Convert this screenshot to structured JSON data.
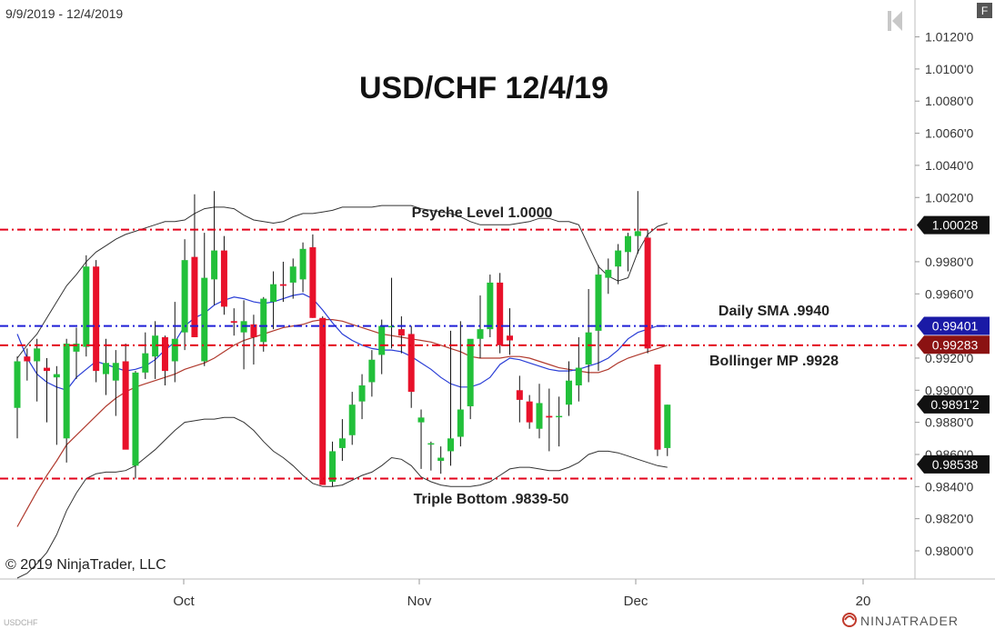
{
  "header": {
    "date_range": "9/9/2019 - 12/4/2019",
    "f_button": "F"
  },
  "footer": {
    "copyright": "© 2019 NinjaTrader, LLC",
    "symbol": "USDCHF",
    "brand": "NINJATRADER"
  },
  "icons": {
    "back": "skip-back-icon",
    "brand_logo": "ninjatrader-logo-icon"
  },
  "colors": {
    "up": "#22c03a",
    "down": "#e8112a",
    "line_red": "#e3001b",
    "line_blue": "#1f1fd6",
    "sma": "#2a3ed6",
    "midband": "#b03a2e",
    "bands": "#333333"
  },
  "chart_data": {
    "type": "candlestick",
    "title": "USD/CHF 12/4/19",
    "ylim": [
      0.9785,
      1.014
    ],
    "y_ticks": [
      "1.0120'0",
      "1.0100'0",
      "1.0080'0",
      "1.0060'0",
      "1.0040'0",
      "1.0020'0",
      "0.9980'0",
      "0.9960'0",
      "0.9920'0",
      "0.9900'0",
      "0.9880'0",
      "0.9860'0",
      "0.9840'0",
      "0.9820'0",
      "0.9800'0"
    ],
    "x_ticks": [
      "Oct",
      "Nov",
      "Dec",
      "20"
    ],
    "price_tags": [
      {
        "text": "1.00028",
        "value": 1.00028,
        "bg": "#111111"
      },
      {
        "text": "0.99401",
        "value": 0.99401,
        "bg": "#1a1aa6"
      },
      {
        "text": "0.99283",
        "value": 0.99283,
        "bg": "#8b1212"
      },
      {
        "text": "0.9891'2",
        "value": 0.98912,
        "bg": "#111111"
      },
      {
        "text": "0.98538",
        "value": 0.98538,
        "bg": "#111111"
      }
    ],
    "levels": [
      {
        "name": "Psyche Level 1.0000",
        "value": 1.0,
        "color": "red"
      },
      {
        "name": "Daily SMA .9940",
        "value": 0.994,
        "color": "blue"
      },
      {
        "name": "Bollinger MP .9928",
        "value": 0.9928,
        "color": "red"
      },
      {
        "name": "Triple Bottom .9839-50",
        "value": 0.9845,
        "color": "red"
      }
    ],
    "candles": [
      [
        0.9889,
        0.9921,
        0.987,
        0.9918
      ],
      [
        0.9921,
        0.9926,
        0.9906,
        0.9918
      ],
      [
        0.9918,
        0.9932,
        0.9893,
        0.9926
      ],
      [
        0.9914,
        0.992,
        0.988,
        0.9912
      ],
      [
        0.9908,
        0.9915,
        0.9866,
        0.991
      ],
      [
        0.987,
        0.9932,
        0.9855,
        0.9929
      ],
      [
        0.9924,
        0.9939,
        0.9907,
        0.9929
      ],
      [
        0.9927,
        0.9984,
        0.9921,
        0.9977
      ],
      [
        0.9977,
        0.9981,
        0.9905,
        0.9912
      ],
      [
        0.991,
        0.9932,
        0.9897,
        0.9917
      ],
      [
        0.9906,
        0.9925,
        0.9884,
        0.9917
      ],
      [
        0.9918,
        0.9929,
        0.9865,
        0.9863
      ],
      [
        0.9853,
        0.9912,
        0.9845,
        0.9911
      ],
      [
        0.9911,
        0.9936,
        0.9907,
        0.9923
      ],
      [
        0.9921,
        0.9943,
        0.9907,
        0.9934
      ],
      [
        0.9933,
        0.9934,
        0.9903,
        0.9912
      ],
      [
        0.9918,
        0.9955,
        0.9905,
        0.9932
      ],
      [
        0.9936,
        0.9994,
        0.9925,
        0.9981
      ],
      [
        0.9983,
        1.0022,
        0.9935,
        0.9933
      ],
      [
        0.9918,
        0.9998,
        0.9915,
        0.997
      ],
      [
        0.9969,
        1.0024,
        0.9953,
        0.9987
      ],
      [
        0.9987,
        0.9996,
        0.9947,
        0.9952
      ],
      [
        0.9943,
        0.9951,
        0.9934,
        0.9942
      ],
      [
        0.9936,
        0.9956,
        0.9913,
        0.9943
      ],
      [
        0.9941,
        0.9947,
        0.9916,
        0.9933
      ],
      [
        0.993,
        0.9958,
        0.9924,
        0.9957
      ],
      [
        0.9955,
        0.9974,
        0.9938,
        0.9966
      ],
      [
        0.9966,
        0.998,
        0.9955,
        0.9965
      ],
      [
        0.9967,
        0.9982,
        0.9957,
        0.9977
      ],
      [
        0.9969,
        0.9992,
        0.9961,
        0.9988
      ],
      [
        0.9989,
        0.9997,
        0.9945,
        0.9945
      ],
      [
        0.9945,
        0.9946,
        0.9841,
        0.9841
      ],
      [
        0.9843,
        0.9868,
        0.984,
        0.9862
      ],
      [
        0.9864,
        0.9882,
        0.9856,
        0.987
      ],
      [
        0.9872,
        0.9899,
        0.9866,
        0.9891
      ],
      [
        0.9893,
        0.991,
        0.9882,
        0.9903
      ],
      [
        0.9905,
        0.9925,
        0.9896,
        0.9919
      ],
      [
        0.9922,
        0.9944,
        0.991,
        0.994
      ],
      [
        0.994,
        0.997,
        0.9926,
        0.994
      ],
      [
        0.9938,
        0.9946,
        0.9923,
        0.9934
      ],
      [
        0.9935,
        0.994,
        0.9889,
        0.9899
      ],
      [
        0.988,
        0.9888,
        0.9851,
        0.9883
      ],
      [
        0.9867,
        0.9868,
        0.985,
        0.9867
      ],
      [
        0.9856,
        0.9865,
        0.9848,
        0.9858
      ],
      [
        0.9862,
        0.9937,
        0.9853,
        0.987
      ],
      [
        0.9871,
        0.9943,
        0.9865,
        0.9888
      ],
      [
        0.989,
        0.993,
        0.9882,
        0.9932
      ],
      [
        0.9932,
        0.9959,
        0.992,
        0.9938
      ],
      [
        0.9938,
        0.9972,
        0.9933,
        0.9967
      ],
      [
        0.9967,
        0.9973,
        0.9923,
        0.9928
      ],
      [
        0.9934,
        0.9951,
        0.9922,
        0.9931
      ],
      [
        0.99,
        0.9909,
        0.988,
        0.9894
      ],
      [
        0.9893,
        0.9897,
        0.9876,
        0.988
      ],
      [
        0.9876,
        0.9904,
        0.987,
        0.9892
      ],
      [
        0.9884,
        0.9901,
        0.9862,
        0.9883
      ],
      [
        0.9884,
        0.9896,
        0.9865,
        0.9884
      ],
      [
        0.9891,
        0.9918,
        0.9884,
        0.9906
      ],
      [
        0.9903,
        0.9933,
        0.9893,
        0.9914
      ],
      [
        0.9916,
        0.9963,
        0.9905,
        0.9936
      ],
      [
        0.9937,
        0.9978,
        0.9912,
        0.9972
      ],
      [
        0.997,
        0.9982,
        0.996,
        0.9975
      ],
      [
        0.9977,
        0.9991,
        0.9966,
        0.9987
      ],
      [
        0.9986,
        0.9998,
        0.9974,
        0.9996
      ],
      [
        0.9996,
        1.0024,
        0.9985,
        0.9999
      ],
      [
        0.9995,
        1.0,
        0.9923,
        0.9926
      ],
      [
        0.9916,
        0.9916,
        0.9859,
        0.9863
      ],
      [
        0.9864,
        0.9891,
        0.9859,
        0.9891
      ]
    ],
    "sma20": [
      0.9935,
      0.992,
      0.991,
      0.9905,
      0.9902,
      0.99,
      0.9908,
      0.9913,
      0.9918,
      0.9916,
      0.9914,
      0.9912,
      0.9913,
      0.9915,
      0.9919,
      0.9925,
      0.993,
      0.994,
      0.9945,
      0.9948,
      0.9953,
      0.9956,
      0.9958,
      0.9957,
      0.9955,
      0.9954,
      0.9955,
      0.9957,
      0.9959,
      0.996,
      0.9957,
      0.995,
      0.9942,
      0.9935,
      0.9931,
      0.9928,
      0.9926,
      0.9925,
      0.9925,
      0.9924,
      0.9921,
      0.9917,
      0.9913,
      0.9908,
      0.9904,
      0.9902,
      0.9902,
      0.9904,
      0.9908,
      0.9916,
      0.992,
      0.9919,
      0.9917,
      0.9915,
      0.9913,
      0.9912,
      0.9912,
      0.9913,
      0.9915,
      0.9917,
      0.992,
      0.9925,
      0.9932,
      0.9936,
      0.9938,
      0.994,
      0.994
    ],
    "midband": [
      0.9815,
      0.9826,
      0.9837,
      0.9847,
      0.9856,
      0.9866,
      0.9872,
      0.9878,
      0.9884,
      0.989,
      0.9895,
      0.9899,
      0.9902,
      0.9904,
      0.9906,
      0.9908,
      0.991,
      0.9913,
      0.9915,
      0.9917,
      0.992,
      0.9924,
      0.9928,
      0.9931,
      0.9933,
      0.9935,
      0.9937,
      0.9939,
      0.994,
      0.9941,
      0.9943,
      0.9944,
      0.9944,
      0.9943,
      0.9941,
      0.9939,
      0.9937,
      0.9935,
      0.9934,
      0.9933,
      0.9932,
      0.9931,
      0.993,
      0.9928,
      0.9926,
      0.9924,
      0.9921,
      0.992,
      0.992,
      0.992,
      0.9921,
      0.9921,
      0.992,
      0.9918,
      0.9916,
      0.9914,
      0.9913,
      0.9912,
      0.9911,
      0.9911,
      0.9913,
      0.9917,
      0.992,
      0.9922,
      0.9924,
      0.9926,
      0.9928
    ],
    "upper_band": [
      0.992,
      0.9928,
      0.9935,
      0.9945,
      0.9955,
      0.9965,
      0.9972,
      0.998,
      0.9986,
      0.999,
      0.9994,
      0.9997,
      0.9999,
      1.0001,
      1.0003,
      1.0005,
      1.0005,
      1.0006,
      1.001,
      1.0013,
      1.0014,
      1.0014,
      1.0013,
      1.0009,
      1.0006,
      1.0005,
      1.0004,
      1.0005,
      1.0008,
      1.001,
      1.001,
      1.0011,
      1.0012,
      1.0014,
      1.0014,
      1.0014,
      1.0014,
      1.0015,
      1.0015,
      1.0015,
      1.0015,
      1.0013,
      1.0012,
      1.0011,
      1.001,
      1.0008,
      1.0005,
      1.0003,
      1.0003,
      1.0003,
      1.0003,
      1.0004,
      1.0005,
      1.0007,
      1.0007,
      1.0005,
      1.0005,
      1.0003,
      0.999,
      0.9977,
      0.9971,
      0.9968,
      0.997,
      0.9986,
      0.9997,
      1.0002,
      1.0004
    ],
    "lower_band": [
      0.9783,
      0.9786,
      0.9792,
      0.9799,
      0.981,
      0.9825,
      0.9836,
      0.9845,
      0.9848,
      0.9849,
      0.9849,
      0.985,
      0.9853,
      0.9858,
      0.9863,
      0.9869,
      0.9875,
      0.988,
      0.9881,
      0.9882,
      0.9882,
      0.9883,
      0.9883,
      0.988,
      0.9875,
      0.9868,
      0.9862,
      0.9858,
      0.9853,
      0.9847,
      0.9842,
      0.984,
      0.984,
      0.9841,
      0.9844,
      0.9847,
      0.9849,
      0.9853,
      0.9858,
      0.9857,
      0.9853,
      0.9846,
      0.9843,
      0.9841,
      0.984,
      0.984,
      0.984,
      0.9841,
      0.9843,
      0.9847,
      0.9851,
      0.9852,
      0.9852,
      0.9851,
      0.985,
      0.985,
      0.9852,
      0.9855,
      0.986,
      0.9862,
      0.9862,
      0.9861,
      0.9859,
      0.9857,
      0.9855,
      0.9853,
      0.9852
    ]
  }
}
